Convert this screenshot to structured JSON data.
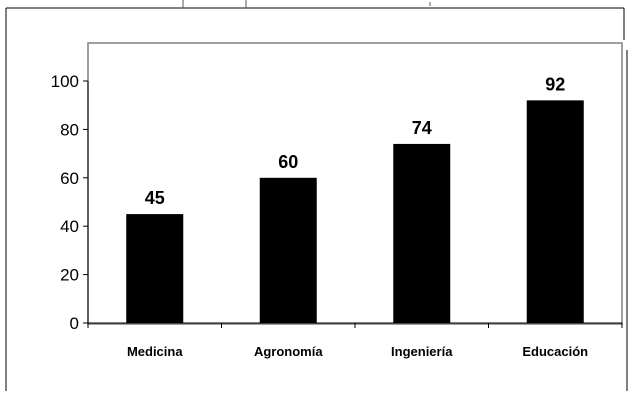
{
  "chart_data": {
    "type": "bar",
    "categories": [
      "Medicina",
      "Agronomía",
      "Ingeniería",
      "Educación"
    ],
    "values": [
      45,
      60,
      74,
      92
    ],
    "data_labels": [
      "45",
      "60",
      "74",
      "92"
    ],
    "ylim": [
      0,
      100
    ],
    "yticks": [
      0,
      20,
      40,
      60,
      80,
      100
    ],
    "ytick_labels": [
      "0",
      "20",
      "40",
      "60",
      "80",
      "100"
    ],
    "title": "",
    "xlabel": "",
    "ylabel": "",
    "grid": false,
    "legend": "none",
    "colors": {
      "bar": "#000000",
      "plot_area_border": "#808080",
      "axis": "#000000",
      "outer_frame": "#000000"
    }
  }
}
